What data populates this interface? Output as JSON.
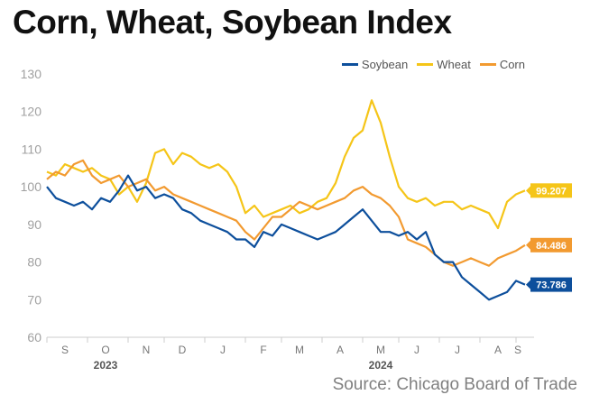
{
  "chart_data": {
    "type": "line",
    "title": "Corn, Wheat, Soybean Index",
    "source": "Source: Chicago Board of Trade",
    "ylim": [
      60,
      130
    ],
    "yticks": [
      60,
      70,
      80,
      90,
      100,
      110,
      120,
      130
    ],
    "xlim": [
      0,
      53
    ],
    "xticks": [
      {
        "label": "S",
        "x": 2
      },
      {
        "label": "O",
        "x": 6.5
      },
      {
        "label": "N",
        "x": 11
      },
      {
        "label": "D",
        "x": 15
      },
      {
        "label": "J",
        "x": 19.5
      },
      {
        "label": "F",
        "x": 24
      },
      {
        "label": "M",
        "x": 28
      },
      {
        "label": "A",
        "x": 32.5
      },
      {
        "label": "M",
        "x": 37
      },
      {
        "label": "J",
        "x": 41
      },
      {
        "label": "J",
        "x": 45.5
      },
      {
        "label": "A",
        "x": 50
      },
      {
        "label": "S",
        "x": 54
      }
    ],
    "years": [
      {
        "label": "2023",
        "x": 6.5
      },
      {
        "label": "2024",
        "x": 37
      }
    ],
    "series": [
      {
        "name": "Soybean",
        "color": "#0d4f9c",
        "end_label": "73.786",
        "x": [
          0,
          1,
          2,
          3,
          4,
          5,
          6,
          7,
          8,
          9,
          10,
          11,
          12,
          13,
          14,
          15,
          16,
          17,
          18,
          19,
          20,
          21,
          22,
          23,
          24,
          25,
          26,
          27,
          28,
          29,
          30,
          31,
          32,
          33,
          34,
          35,
          36,
          37,
          38,
          39,
          40,
          41,
          42,
          43,
          44,
          45,
          46,
          47,
          48,
          49,
          50,
          51,
          52,
          53
        ],
        "values": [
          100,
          97,
          96,
          95,
          96,
          94,
          97,
          96,
          99,
          103,
          99,
          100,
          97,
          98,
          97,
          94,
          93,
          91,
          90,
          89,
          88,
          86,
          86,
          84,
          88,
          87,
          90,
          89,
          88,
          87,
          86,
          87,
          88,
          90,
          92,
          94,
          91,
          88,
          88,
          87,
          88,
          86,
          88,
          82,
          80,
          80,
          76,
          74,
          72,
          70,
          71,
          72,
          75,
          74
        ]
      },
      {
        "name": "Wheat",
        "color": "#f5c518",
        "end_label": "99.207",
        "x": [
          0,
          1,
          2,
          3,
          4,
          5,
          6,
          7,
          8,
          9,
          10,
          11,
          12,
          13,
          14,
          15,
          16,
          17,
          18,
          19,
          20,
          21,
          22,
          23,
          24,
          25,
          26,
          27,
          28,
          29,
          30,
          31,
          32,
          33,
          34,
          35,
          36,
          37,
          38,
          39,
          40,
          41,
          42,
          43,
          44,
          45,
          46,
          47,
          48,
          49,
          50,
          51,
          52,
          53
        ],
        "values": [
          104,
          103,
          106,
          105,
          104,
          105,
          103,
          102,
          98,
          100,
          96,
          101,
          109,
          110,
          106,
          109,
          108,
          106,
          105,
          106,
          104,
          100,
          93,
          95,
          92,
          93,
          94,
          95,
          93,
          94,
          96,
          97,
          101,
          108,
          113,
          115,
          123,
          117,
          108,
          100,
          97,
          96,
          97,
          95,
          96,
          96,
          94,
          95,
          94,
          93,
          89,
          96,
          98,
          99
        ]
      },
      {
        "name": "Corn",
        "color": "#f29a30",
        "end_label": "84.486",
        "x": [
          0,
          1,
          2,
          3,
          4,
          5,
          6,
          7,
          8,
          9,
          10,
          11,
          12,
          13,
          14,
          15,
          16,
          17,
          18,
          19,
          20,
          21,
          22,
          23,
          24,
          25,
          26,
          27,
          28,
          29,
          30,
          31,
          32,
          33,
          34,
          35,
          36,
          37,
          38,
          39,
          40,
          41,
          42,
          43,
          44,
          45,
          46,
          47,
          48,
          49,
          50,
          51,
          52,
          53
        ],
        "values": [
          102,
          104,
          103,
          106,
          107,
          103,
          101,
          102,
          103,
          100,
          101,
          102,
          99,
          100,
          98,
          97,
          96,
          95,
          94,
          93,
          92,
          91,
          88,
          86,
          89,
          92,
          92,
          94,
          96,
          95,
          94,
          95,
          96,
          97,
          99,
          100,
          98,
          97,
          95,
          92,
          86,
          85,
          84,
          82,
          80,
          79,
          80,
          81,
          80,
          79,
          81,
          82,
          83,
          84.5
        ]
      }
    ]
  }
}
